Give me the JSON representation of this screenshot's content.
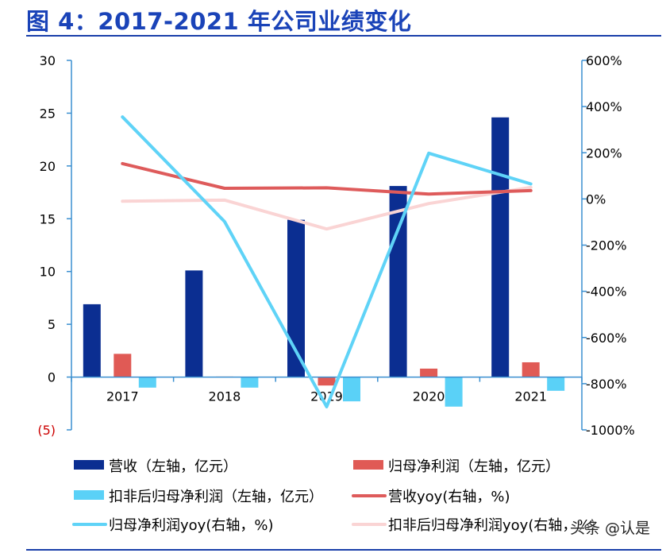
{
  "title": "图 4：2017-2021 年公司业绩变化",
  "watermark": "头条 @认是",
  "colors": {
    "revenue": "#0b2e91",
    "net_profit": "#e05a55",
    "deducted_net_profit": "#5ad1f7",
    "revenue_yoy": "#de5b5b",
    "net_profit_yoy": "#5fd3f7",
    "deducted_net_profit_yoy": "#fad4d4",
    "axis": "#3a8fd0",
    "title": "#1a43b8"
  },
  "chart_data": {
    "type": "bar",
    "categories": [
      "2017",
      "2018",
      "2019",
      "2020",
      "2021"
    ],
    "left_axis": {
      "ylim": [
        -5,
        30
      ],
      "ticks": [
        30,
        25,
        20,
        15,
        10,
        5,
        0,
        -5
      ],
      "tick_labels": [
        "30",
        "25",
        "20",
        "15",
        "10",
        "5",
        "0",
        "(5)"
      ]
    },
    "right_axis": {
      "ylim": [
        -1000,
        600
      ],
      "ticks": [
        600,
        400,
        200,
        0,
        -200,
        -400,
        -600,
        -800,
        -1000
      ],
      "tick_labels": [
        "600%",
        "400%",
        "200%",
        "0%",
        "-200%",
        "-400%",
        "-600%",
        "-800%",
        "-1000%"
      ]
    },
    "bar_series": [
      {
        "name": "营收（左轴，亿元）",
        "axis": "left",
        "values": [
          6.9,
          10.1,
          14.9,
          18.1,
          24.6
        ]
      },
      {
        "name": "归母净利润（左轴，亿元）",
        "axis": "left",
        "values": [
          2.2,
          0.05,
          -0.8,
          0.8,
          1.4
        ]
      },
      {
        "name": "扣非后归母净利润（左轴，亿元）",
        "axis": "left",
        "values": [
          -1.0,
          -1.0,
          -2.3,
          -2.8,
          -1.3
        ]
      }
    ],
    "line_series": [
      {
        "name": "营收yoy(右轴，%)",
        "axis": "right",
        "values": [
          153,
          46,
          48,
          21,
          36
        ]
      },
      {
        "name": "归母净利润yoy(右轴，%)",
        "axis": "right",
        "values": [
          355,
          -98,
          -900,
          198,
          65
        ]
      },
      {
        "name": "扣非后归母净利润yoy(右轴，%)",
        "axis": "right",
        "values": [
          -10,
          -5,
          -130,
          -20,
          50
        ]
      }
    ],
    "legend": {
      "placement": "bottom",
      "items": [
        {
          "label": "营收（左轴，亿元）",
          "kind": "bar",
          "color": "#0b2e91"
        },
        {
          "label": "归母净利润（左轴，亿元）",
          "kind": "bar",
          "color": "#e05a55"
        },
        {
          "label": "扣非后归母净利润（左轴，亿元）",
          "kind": "bar",
          "color": "#5ad1f7"
        },
        {
          "label": "营收yoy(右轴，%)",
          "kind": "line",
          "color": "#de5b5b"
        },
        {
          "label": "归母净利润yoy(右轴，%)",
          "kind": "line",
          "color": "#5fd3f7"
        },
        {
          "label": "扣非后归母净利润yoy(右轴，%)",
          "kind": "line",
          "color": "#fad4d4"
        }
      ]
    },
    "grid": false
  }
}
